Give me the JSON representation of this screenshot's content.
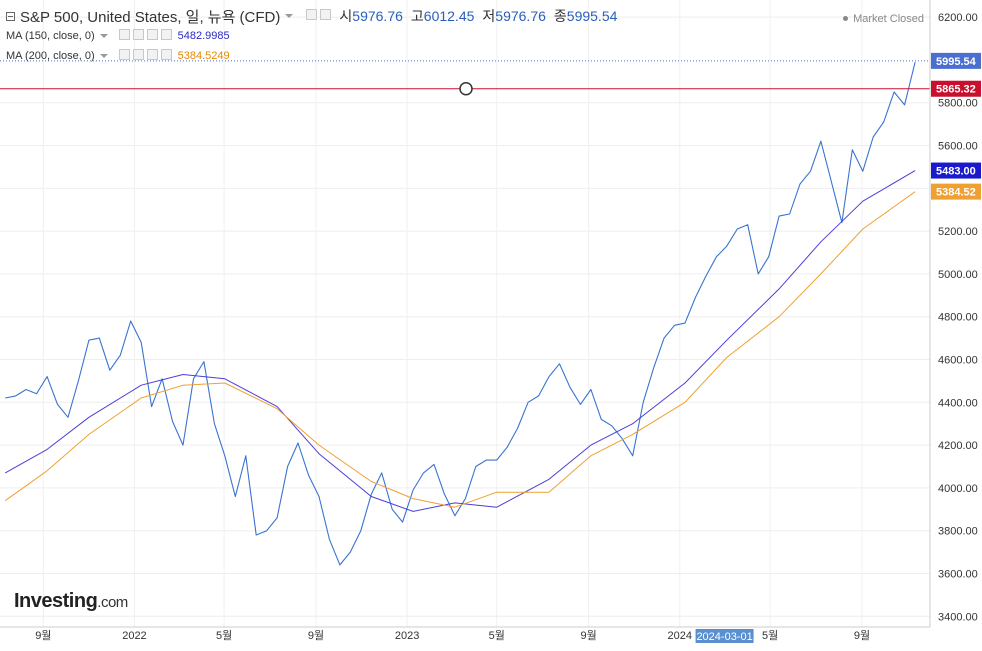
{
  "legend": {
    "title": "S&P 500, United States, 일, 뉴욕 (CFD)",
    "open_label": "시",
    "open": "5976.76",
    "high_label": "고",
    "high": "6012.45",
    "low_label": "저",
    "low": "5976.76",
    "close_label": "종",
    "close": "5995.54",
    "ma150_label": "MA (150, close, 0)",
    "ma150_value": "5482.9985",
    "ma200_label": "MA (200, close, 0)",
    "ma200_value": "5384.5249"
  },
  "market_status": "Market Closed",
  "logo": {
    "brand": "Investing",
    "suffix": ".com"
  },
  "colors": {
    "price_line": "#3a73d1",
    "ma150": "#4a3fd6",
    "ma200": "#f0a030",
    "horizontal_line": "#c8102e",
    "last_price_line": "#4a6fd0"
  },
  "chart_data": {
    "type": "line",
    "title": "S&P 500, United States, 일, 뉴욕 (CFD)",
    "xlabel": "",
    "ylabel": "",
    "ylim": [
      3350,
      6280
    ],
    "y_ticks": [
      "3400.00",
      "3600.00",
      "3800.00",
      "4000.00",
      "4200.00",
      "4400.00",
      "4600.00",
      "4800.00",
      "5000.00",
      "5200.00",
      "5400.00",
      "5600.00",
      "5800.00",
      "6200.00"
    ],
    "x_ticks": [
      {
        "label": "9월",
        "date": "2021-09"
      },
      {
        "label": "2022",
        "date": "2022-01"
      },
      {
        "label": "5월",
        "date": "2022-05"
      },
      {
        "label": "9월",
        "date": "2022-09"
      },
      {
        "label": "2023",
        "date": "2023-01"
      },
      {
        "label": "5월",
        "date": "2023-05"
      },
      {
        "label": "9월",
        "date": "2023-09"
      },
      {
        "label": "2024",
        "date": "2024-01"
      },
      {
        "label": "5월",
        "date": "2024-05"
      },
      {
        "label": "9월",
        "date": "2024-09"
      }
    ],
    "crosshair_date_label": "2024-03-01",
    "horizontal_line_value": "5865.32",
    "price_labels": {
      "last": "5995.54",
      "ma150": "5483.00",
      "ma200": "5384.52",
      "horizontal": "5865.32"
    },
    "series": [
      {
        "name": "S&P 500",
        "points": [
          [
            "2021-07-12",
            4420
          ],
          [
            "2021-07-26",
            4430
          ],
          [
            "2021-08-09",
            4460
          ],
          [
            "2021-08-23",
            4440
          ],
          [
            "2021-09-06",
            4520
          ],
          [
            "2021-09-20",
            4390
          ],
          [
            "2021-10-04",
            4330
          ],
          [
            "2021-10-18",
            4500
          ],
          [
            "2021-11-01",
            4690
          ],
          [
            "2021-11-15",
            4700
          ],
          [
            "2021-11-29",
            4550
          ],
          [
            "2021-12-13",
            4620
          ],
          [
            "2021-12-27",
            4780
          ],
          [
            "2022-01-10",
            4680
          ],
          [
            "2022-01-24",
            4380
          ],
          [
            "2022-02-07",
            4510
          ],
          [
            "2022-02-21",
            4310
          ],
          [
            "2022-03-07",
            4200
          ],
          [
            "2022-03-21",
            4510
          ],
          [
            "2022-04-04",
            4590
          ],
          [
            "2022-04-18",
            4300
          ],
          [
            "2022-05-02",
            4150
          ],
          [
            "2022-05-16",
            3960
          ],
          [
            "2022-05-30",
            4150
          ],
          [
            "2022-06-13",
            3780
          ],
          [
            "2022-06-27",
            3800
          ],
          [
            "2022-07-11",
            3860
          ],
          [
            "2022-07-25",
            4100
          ],
          [
            "2022-08-08",
            4210
          ],
          [
            "2022-08-22",
            4060
          ],
          [
            "2022-09-05",
            3960
          ],
          [
            "2022-09-19",
            3760
          ],
          [
            "2022-10-03",
            3640
          ],
          [
            "2022-10-17",
            3700
          ],
          [
            "2022-10-31",
            3800
          ],
          [
            "2022-11-14",
            3970
          ],
          [
            "2022-11-28",
            4070
          ],
          [
            "2022-12-12",
            3900
          ],
          [
            "2022-12-26",
            3840
          ],
          [
            "2023-01-09",
            3990
          ],
          [
            "2023-01-23",
            4070
          ],
          [
            "2023-02-06",
            4110
          ],
          [
            "2023-02-20",
            3970
          ],
          [
            "2023-03-06",
            3870
          ],
          [
            "2023-03-20",
            3950
          ],
          [
            "2023-04-03",
            4100
          ],
          [
            "2023-04-17",
            4130
          ],
          [
            "2023-05-01",
            4130
          ],
          [
            "2023-05-15",
            4190
          ],
          [
            "2023-05-29",
            4280
          ],
          [
            "2023-06-12",
            4400
          ],
          [
            "2023-06-26",
            4430
          ],
          [
            "2023-07-10",
            4520
          ],
          [
            "2023-07-24",
            4580
          ],
          [
            "2023-08-07",
            4470
          ],
          [
            "2023-08-21",
            4390
          ],
          [
            "2023-09-04",
            4460
          ],
          [
            "2023-09-18",
            4320
          ],
          [
            "2023-10-02",
            4290
          ],
          [
            "2023-10-16",
            4230
          ],
          [
            "2023-10-30",
            4150
          ],
          [
            "2023-11-13",
            4400
          ],
          [
            "2023-11-27",
            4560
          ],
          [
            "2023-12-11",
            4700
          ],
          [
            "2023-12-25",
            4760
          ],
          [
            "2024-01-08",
            4770
          ],
          [
            "2024-01-22",
            4890
          ],
          [
            "2024-02-05",
            4990
          ],
          [
            "2024-02-19",
            5080
          ],
          [
            "2024-03-04",
            5130
          ],
          [
            "2024-03-18",
            5210
          ],
          [
            "2024-04-01",
            5230
          ],
          [
            "2024-04-15",
            5000
          ],
          [
            "2024-04-29",
            5080
          ],
          [
            "2024-05-13",
            5270
          ],
          [
            "2024-05-27",
            5280
          ],
          [
            "2024-06-10",
            5420
          ],
          [
            "2024-06-24",
            5480
          ],
          [
            "2024-07-08",
            5620
          ],
          [
            "2024-07-22",
            5430
          ],
          [
            "2024-08-05",
            5240
          ],
          [
            "2024-08-19",
            5580
          ],
          [
            "2024-09-02",
            5480
          ],
          [
            "2024-09-16",
            5640
          ],
          [
            "2024-09-30",
            5710
          ],
          [
            "2024-10-14",
            5850
          ],
          [
            "2024-10-28",
            5790
          ],
          [
            "2024-11-11",
            5990
          ]
        ]
      },
      {
        "name": "MA (150, close, 0)",
        "points": [
          [
            "2021-07-12",
            4070
          ],
          [
            "2021-09-06",
            4180
          ],
          [
            "2021-11-01",
            4330
          ],
          [
            "2022-01-10",
            4480
          ],
          [
            "2022-03-07",
            4530
          ],
          [
            "2022-05-02",
            4510
          ],
          [
            "2022-07-11",
            4380
          ],
          [
            "2022-09-05",
            4160
          ],
          [
            "2022-11-14",
            3960
          ],
          [
            "2023-01-09",
            3890
          ],
          [
            "2023-03-06",
            3930
          ],
          [
            "2023-05-01",
            3910
          ],
          [
            "2023-07-10",
            4040
          ],
          [
            "2023-09-04",
            4200
          ],
          [
            "2023-10-30",
            4300
          ],
          [
            "2024-01-08",
            4490
          ],
          [
            "2024-03-04",
            4690
          ],
          [
            "2024-05-13",
            4930
          ],
          [
            "2024-07-08",
            5150
          ],
          [
            "2024-09-02",
            5340
          ],
          [
            "2024-11-11",
            5483
          ]
        ]
      },
      {
        "name": "MA (200, close, 0)",
        "points": [
          [
            "2021-07-12",
            3940
          ],
          [
            "2021-09-06",
            4080
          ],
          [
            "2021-11-01",
            4250
          ],
          [
            "2022-01-10",
            4420
          ],
          [
            "2022-03-07",
            4480
          ],
          [
            "2022-05-02",
            4490
          ],
          [
            "2022-07-11",
            4370
          ],
          [
            "2022-09-05",
            4200
          ],
          [
            "2022-11-14",
            4030
          ],
          [
            "2023-01-09",
            3950
          ],
          [
            "2023-03-06",
            3910
          ],
          [
            "2023-05-01",
            3980
          ],
          [
            "2023-07-10",
            3980
          ],
          [
            "2023-09-04",
            4150
          ],
          [
            "2023-10-30",
            4250
          ],
          [
            "2024-01-08",
            4400
          ],
          [
            "2024-03-04",
            4610
          ],
          [
            "2024-05-13",
            4800
          ],
          [
            "2024-07-08",
            5000
          ],
          [
            "2024-09-02",
            5210
          ],
          [
            "2024-11-11",
            5384
          ]
        ]
      }
    ]
  }
}
